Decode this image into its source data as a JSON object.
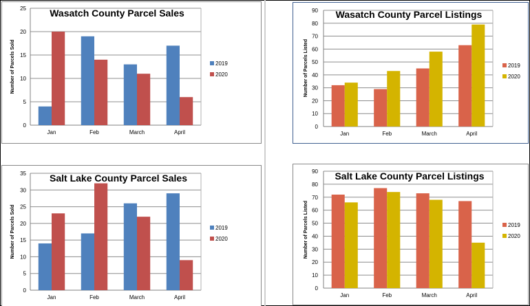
{
  "chart_data": [
    {
      "type": "bar",
      "title": "Wasatch County Parcel Sales",
      "xlabel": "",
      "ylabel": "Number of Parcels Sold",
      "categories": [
        "Jan",
        "Feb",
        "March",
        "April"
      ],
      "series": [
        {
          "name": "2019",
          "values": [
            4,
            19,
            13,
            17
          ],
          "color": "#4f81bd"
        },
        {
          "name": "2020",
          "values": [
            20,
            14,
            11,
            6
          ],
          "color": "#c0504d"
        }
      ],
      "ylim": [
        0,
        25
      ],
      "yticks": [
        0,
        5,
        10,
        15,
        20,
        25
      ],
      "grid": true,
      "legend": "right"
    },
    {
      "type": "bar",
      "title": "Wasatch County Parcel Listings",
      "xlabel": "",
      "ylabel": "Number of Parcels Listed",
      "categories": [
        "Jan",
        "Feb",
        "March",
        "April"
      ],
      "series": [
        {
          "name": "2019",
          "values": [
            32,
            29,
            45,
            63
          ],
          "color": "#d9634a"
        },
        {
          "name": "2020",
          "values": [
            34,
            43,
            58,
            79
          ],
          "color": "#d4b400"
        }
      ],
      "ylim": [
        0,
        90
      ],
      "yticks": [
        0,
        10,
        20,
        30,
        40,
        50,
        60,
        70,
        80,
        90
      ],
      "grid": true,
      "legend": "right"
    },
    {
      "type": "bar",
      "title": "Salt Lake County Parcel Sales",
      "xlabel": "",
      "ylabel": "Number of Parcels Sold",
      "categories": [
        "Jan",
        "Feb",
        "March",
        "April"
      ],
      "series": [
        {
          "name": "2019",
          "values": [
            14,
            17,
            26,
            29
          ],
          "color": "#4f81bd"
        },
        {
          "name": "2020",
          "values": [
            23,
            32,
            22,
            9
          ],
          "color": "#c0504d"
        }
      ],
      "ylim": [
        0,
        35
      ],
      "yticks": [
        0,
        5,
        10,
        15,
        20,
        25,
        30,
        35
      ],
      "grid": true,
      "legend": "right"
    },
    {
      "type": "bar",
      "title": "Salt Lake County Parcel Listings",
      "xlabel": "",
      "ylabel": "Number of Parcels Listed",
      "categories": [
        "Jan",
        "Feb",
        "March",
        "April"
      ],
      "series": [
        {
          "name": "2019",
          "values": [
            72,
            77,
            73,
            67
          ],
          "color": "#d9634a"
        },
        {
          "name": "2020",
          "values": [
            66,
            74,
            68,
            35
          ],
          "color": "#d4b400"
        }
      ],
      "ylim": [
        0,
        90
      ],
      "yticks": [
        0,
        10,
        20,
        30,
        40,
        50,
        60,
        70,
        80,
        90
      ],
      "grid": true,
      "legend": "right"
    }
  ]
}
